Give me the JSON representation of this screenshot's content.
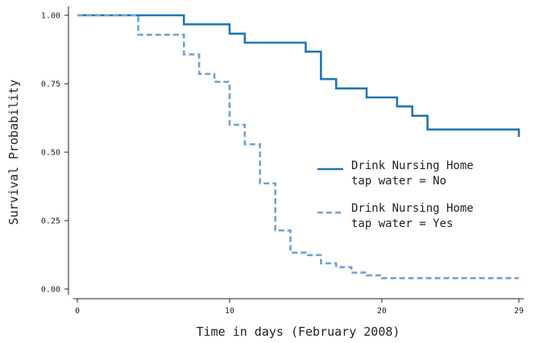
{
  "chart_data": {
    "type": "line",
    "title": "",
    "xlabel": "Time in days (February 2008)",
    "ylabel": "Survival Probability",
    "xlim": [
      0,
      29
    ],
    "ylim": [
      0,
      1
    ],
    "x_ticks": [
      0,
      10,
      20,
      29
    ],
    "x_tick_labels": [
      "0",
      "10",
      "20",
      "29"
    ],
    "y_ticks": [
      0,
      0.25,
      0.5,
      0.75,
      1
    ],
    "y_tick_labels": [
      "0.00",
      "0.25",
      "0.50",
      "0.75",
      "1.00"
    ],
    "grid": false,
    "legend_position": "right",
    "series": [
      {
        "name": "Drink Nursing Home tap water = No",
        "legend_lines": [
          "Drink Nursing Home",
          "tap water = No"
        ],
        "color": "#1f77b4",
        "style": "solid",
        "x": [
          0,
          7,
          10,
          11,
          15,
          16,
          17,
          19,
          21,
          22,
          23,
          28.8,
          29
        ],
        "y": [
          1.0,
          0.967,
          0.933,
          0.9,
          0.867,
          0.767,
          0.733,
          0.7,
          0.667,
          0.633,
          0.583,
          0.583,
          0.556
        ]
      },
      {
        "name": "Drink Nursing Home tap water = Yes",
        "legend_lines": [
          "Drink Nursing Home",
          "tap water = Yes"
        ],
        "color": "#6fa3d0",
        "style": "dashed",
        "x": [
          0,
          4,
          7,
          8,
          9,
          10,
          11,
          12,
          13,
          14,
          15,
          16,
          17,
          18,
          19,
          20,
          29
        ],
        "y": [
          1.0,
          0.929,
          0.857,
          0.786,
          0.757,
          0.6,
          0.529,
          0.386,
          0.214,
          0.133,
          0.124,
          0.094,
          0.08,
          0.06,
          0.05,
          0.04,
          0.04
        ]
      }
    ]
  }
}
